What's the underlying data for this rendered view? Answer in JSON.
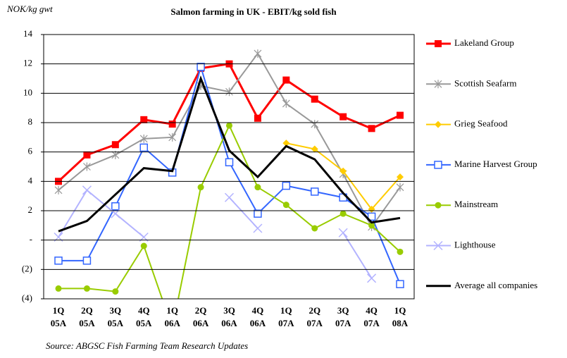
{
  "chart_data": {
    "type": "line",
    "title": "Salmon farming in  UK - EBIT/kg sold fish",
    "y_axis_label": "NOK/kg gwt",
    "source": "Source: ABGSC Fish Farming Team Research Updates",
    "categories": [
      "1Q\n05A",
      "2Q\n05A",
      "3Q\n05A",
      "4Q\n05A",
      "1Q\n06A",
      "2Q\n06A",
      "3Q\n06A",
      "4Q\n06A",
      "1Q\n07A",
      "2Q\n07A",
      "3Q\n07A",
      "4Q\n07A",
      "1Q\n08A"
    ],
    "ylim": [
      -4,
      14
    ],
    "yticks": [
      {
        "value": -4,
        "label": "(4)"
      },
      {
        "value": -2,
        "label": "(2)"
      },
      {
        "value": 0,
        "label": "-"
      },
      2,
      4,
      6,
      8,
      10,
      12,
      14
    ],
    "grid": true,
    "legend": "right",
    "series": [
      {
        "name": "Lakeland Group",
        "color": "#ff0000",
        "marker": "square",
        "values": [
          4.0,
          5.8,
          6.5,
          8.2,
          7.9,
          11.7,
          12.0,
          8.3,
          10.9,
          9.6,
          8.4,
          7.6,
          8.5
        ]
      },
      {
        "name": "Scottish Seafarm",
        "color": "#999999",
        "marker": "star",
        "values": [
          3.4,
          5.0,
          5.8,
          6.9,
          7.0,
          10.5,
          10.1,
          12.7,
          9.3,
          7.9,
          4.5,
          0.9,
          3.6
        ]
      },
      {
        "name": "Grieg Seafood",
        "color": "#ffcc00",
        "marker": "diamond",
        "values": [
          null,
          null,
          null,
          null,
          null,
          null,
          null,
          null,
          6.6,
          6.2,
          4.7,
          2.1,
          4.3
        ]
      },
      {
        "name": "Marine Harvest Group",
        "color": "#3366ff",
        "marker": "square-open",
        "values": [
          -1.4,
          -1.4,
          2.3,
          6.3,
          4.6,
          11.8,
          5.3,
          1.8,
          3.7,
          3.3,
          2.9,
          1.6,
          -3.0
        ]
      },
      {
        "name": "Mainstream",
        "color": "#99cc00",
        "marker": "circle",
        "values": [
          -3.3,
          -3.3,
          -3.5,
          -0.4,
          -6.0,
          3.6,
          7.8,
          3.6,
          2.4,
          0.8,
          1.8,
          1.0,
          -0.8
        ]
      },
      {
        "name": "Lighthouse",
        "color": "#b3b3ff",
        "marker": "x",
        "values": [
          0.2,
          3.4,
          1.8,
          0.2,
          null,
          null,
          2.9,
          0.8,
          null,
          null,
          0.5,
          -2.6,
          null
        ]
      },
      {
        "name": "Average all companies",
        "color": "#000000",
        "marker": "none",
        "values": [
          0.6,
          1.3,
          3.1,
          4.9,
          4.7,
          11.0,
          6.1,
          4.3,
          6.4,
          5.5,
          3.2,
          1.2,
          1.5
        ]
      }
    ]
  }
}
